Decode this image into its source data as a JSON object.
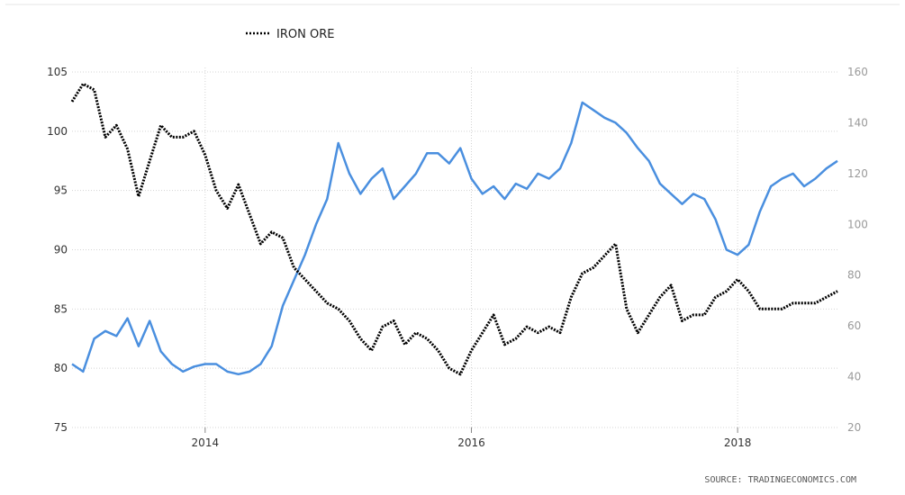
{
  "source_label": "SOURCE: TRADINGECONOMICS.COM",
  "colors": {
    "iron_ore": "#000000",
    "second_series": "#4a8fdf",
    "grid": "#d4d4d4",
    "right_axis_text": "#9a9a9a"
  },
  "chart_data": {
    "type": "line",
    "title": "",
    "legend": {
      "position": "top-left",
      "entries": [
        "IRON ORE"
      ]
    },
    "grid": true,
    "x_ticks": [
      "2014",
      "2016",
      "2018"
    ],
    "xlim": [
      "2013-01",
      "2018-10"
    ],
    "left_axis": {
      "ticks": [
        75,
        80,
        85,
        90,
        95,
        100,
        105
      ],
      "ylim": [
        75,
        105
      ]
    },
    "right_axis": {
      "ticks": [
        20,
        40,
        60,
        80,
        100,
        120,
        140,
        160
      ],
      "ylim": [
        20,
        160
      ]
    },
    "series": [
      {
        "name": "IRON ORE",
        "axis": "left",
        "style": "dotted",
        "x": [
          "2013-01",
          "2013-02",
          "2013-03",
          "2013-04",
          "2013-05",
          "2013-06",
          "2013-07",
          "2013-08",
          "2013-09",
          "2013-10",
          "2013-11",
          "2013-12",
          "2014-01",
          "2014-02",
          "2014-03",
          "2014-04",
          "2014-05",
          "2014-06",
          "2014-07",
          "2014-08",
          "2014-09",
          "2014-10",
          "2014-11",
          "2014-12",
          "2015-01",
          "2015-02",
          "2015-03",
          "2015-04",
          "2015-05",
          "2015-06",
          "2015-07",
          "2015-08",
          "2015-09",
          "2015-10",
          "2015-11",
          "2015-12",
          "2016-01",
          "2016-02",
          "2016-03",
          "2016-04",
          "2016-05",
          "2016-06",
          "2016-07",
          "2016-08",
          "2016-09",
          "2016-10",
          "2016-11",
          "2016-12",
          "2017-01",
          "2017-02",
          "2017-03",
          "2017-04",
          "2017-05",
          "2017-06",
          "2017-07",
          "2017-08",
          "2017-09",
          "2017-10",
          "2017-11",
          "2017-12",
          "2018-01",
          "2018-02",
          "2018-03",
          "2018-04",
          "2018-05",
          "2018-06",
          "2018-07",
          "2018-08",
          "2018-09",
          "2018-10"
        ],
        "values": [
          102.5,
          104.0,
          103.5,
          99.5,
          100.5,
          98.5,
          94.5,
          97.5,
          100.5,
          99.5,
          99.5,
          100.0,
          98.0,
          95.0,
          93.5,
          95.5,
          93.0,
          90.5,
          91.5,
          91.0,
          88.5,
          87.5,
          86.5,
          85.5,
          85.0,
          84.0,
          82.5,
          81.5,
          83.5,
          84.0,
          82.0,
          83.0,
          82.5,
          81.5,
          80.0,
          79.5,
          81.5,
          83.0,
          84.5,
          82.0,
          82.5,
          83.5,
          83.0,
          83.5,
          83.0,
          86.0,
          88.0,
          88.5,
          89.5,
          90.5,
          85.0,
          83.0,
          84.5,
          86.0,
          87.0,
          84.0,
          84.5,
          84.5,
          86.0,
          86.5,
          87.5,
          86.5,
          85.0,
          85.0,
          85.0,
          85.5,
          85.5,
          85.5,
          86.0,
          86.5
        ]
      },
      {
        "axis": "right",
        "style": "solid",
        "x": [
          "2013-01",
          "2013-02",
          "2013-03",
          "2013-04",
          "2013-05",
          "2013-06",
          "2013-07",
          "2013-08",
          "2013-09",
          "2013-10",
          "2013-11",
          "2013-12",
          "2014-01",
          "2014-02",
          "2014-03",
          "2014-04",
          "2014-05",
          "2014-06",
          "2014-07",
          "2014-08",
          "2014-09",
          "2014-10",
          "2014-11",
          "2014-12",
          "2015-01",
          "2015-02",
          "2015-03",
          "2015-04",
          "2015-05",
          "2015-06",
          "2015-07",
          "2015-08",
          "2015-09",
          "2015-10",
          "2015-11",
          "2015-12",
          "2016-01",
          "2016-02",
          "2016-03",
          "2016-04",
          "2016-05",
          "2016-06",
          "2016-07",
          "2016-08",
          "2016-09",
          "2016-10",
          "2016-11",
          "2016-12",
          "2017-01",
          "2017-02",
          "2017-03",
          "2017-04",
          "2017-05",
          "2017-06",
          "2017-07",
          "2017-08",
          "2017-09",
          "2017-10",
          "2017-11",
          "2017-12",
          "2018-01",
          "2018-02",
          "2018-03",
          "2018-04",
          "2018-05",
          "2018-06",
          "2018-07",
          "2018-08",
          "2018-09",
          "2018-10"
        ],
        "values": [
          45,
          42,
          55,
          58,
          56,
          63,
          52,
          62,
          50,
          45,
          42,
          44,
          45,
          45,
          42,
          41,
          42,
          45,
          52,
          68,
          78,
          88,
          100,
          110,
          132,
          120,
          112,
          118,
          122,
          110,
          115,
          120,
          128,
          128,
          124,
          130,
          118,
          112,
          115,
          110,
          116,
          114,
          120,
          118,
          122,
          132,
          148,
          145,
          142,
          140,
          136,
          130,
          125,
          116,
          112,
          108,
          112,
          110,
          102,
          90,
          88,
          92,
          105,
          115,
          118,
          120,
          115,
          118,
          122,
          125
        ]
      }
    ]
  }
}
